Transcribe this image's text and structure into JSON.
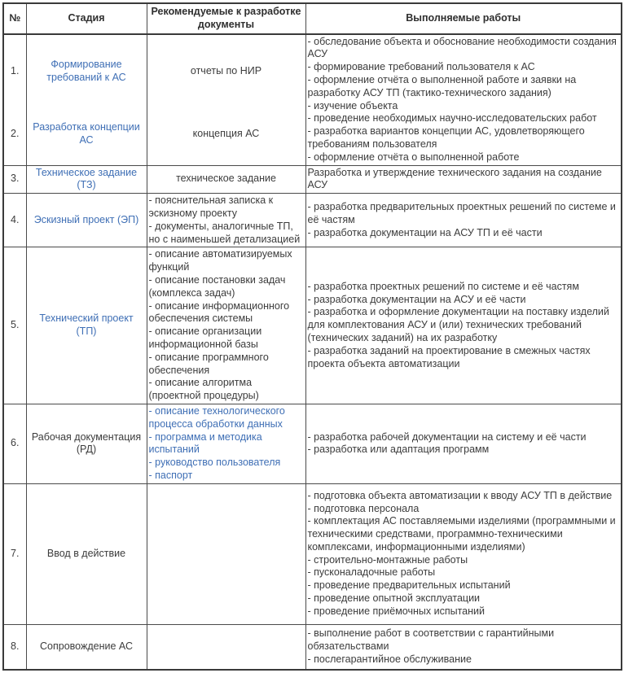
{
  "table": {
    "headers": {
      "num": "№",
      "stage": "Стадия",
      "docs": "Рекомендуемые к разработке документы",
      "works": "Выполняемые работы"
    },
    "link_color": "#3f6fb5",
    "row12": {
      "entry1": {
        "num": "1.",
        "stage": "Формирование требований к АС",
        "doc": "отчеты по НИР"
      },
      "entry2": {
        "num": "2.",
        "stage": "Разработка концепции АС",
        "doc": "концепция АС"
      },
      "works": [
        "- обследование объекта и обоснование необходимости создания АСУ",
        "- формирование требований пользователя к АС",
        "- оформление отчёта о выполненной работе и заявки на разработку АСУ ТП (тактико-технического задания)",
        "- изучение объекта",
        "- проведение необходимых научно-исследовательских работ",
        "- разработка вариантов концепции АС, удовлетворяющего требованиям пользователя",
        "- оформление отчёта о выполненной работе"
      ]
    },
    "row3": {
      "num": "3.",
      "stage": "Техническое задание (ТЗ)",
      "doc": "техническое задание",
      "works": [
        "Разработка и утверждение технического задания на создание АСУ"
      ]
    },
    "row4": {
      "num": "4.",
      "stage": "Эскизный проект (ЭП)",
      "docs": [
        "- пояснительная записка к эскизному проекту",
        "- документы, аналогичные ТП, но с наименьшей детализацией"
      ],
      "works": [
        "- разработка предварительных проектных решений по системе и её частям",
        "- разработка документации на АСУ ТП и её части"
      ]
    },
    "row5": {
      "num": "5.",
      "stage": "Технический проект (ТП)",
      "docs": [
        "- описание автоматизируемых функций",
        "- описание постановки задач (комплекса задач)",
        "- описание информационного обеспечения системы",
        "- описание организации информационной базы",
        "- описание программного обеспечения",
        "- описание алгоритма (проектной процедуры)"
      ],
      "works": [
        "- разработка проектных решений по системе и её частям",
        "- разработка документации на АСУ и её части",
        "- разработка и оформление документации на поставку изделий для комплектования АСУ и (или) технических требований (технических заданий) на их разработку",
        "- разработка заданий на проектирование в смежных частях проекта объекта автоматизации"
      ]
    },
    "row6": {
      "num": "6.",
      "stage": "Рабочая документация (РД)",
      "docs": [
        "- описание технологического процесса обработки данных",
        "- программа и методика испытаний",
        "- руководство пользователя",
        "- паспорт"
      ],
      "works": [
        "- разработка рабочей документации на систему и её части",
        "- разработка или адаптация программ"
      ]
    },
    "row7": {
      "num": "7.",
      "stage": "Ввод в действие",
      "works": [
        "- подготовка объекта автоматизации к вводу АСУ ТП в действие",
        "- подготовка персонала",
        "- комплектация АС поставляемыми изделиями (программными и техническими средствами, программно-техническими комплексами, информационными изделиями)",
        "- строительно-монтажные работы",
        "- пусконаладочные работы",
        "- проведение предварительных испытаний",
        "- проведение опытной эксплуатации",
        "- проведение приёмочных испытаний"
      ]
    },
    "row8": {
      "num": "8.",
      "stage": "Сопровождение АС",
      "works": [
        "- выполнение работ в соответствии с гарантийными обязательствами",
        "- послегарантийное обслуживание"
      ]
    }
  }
}
